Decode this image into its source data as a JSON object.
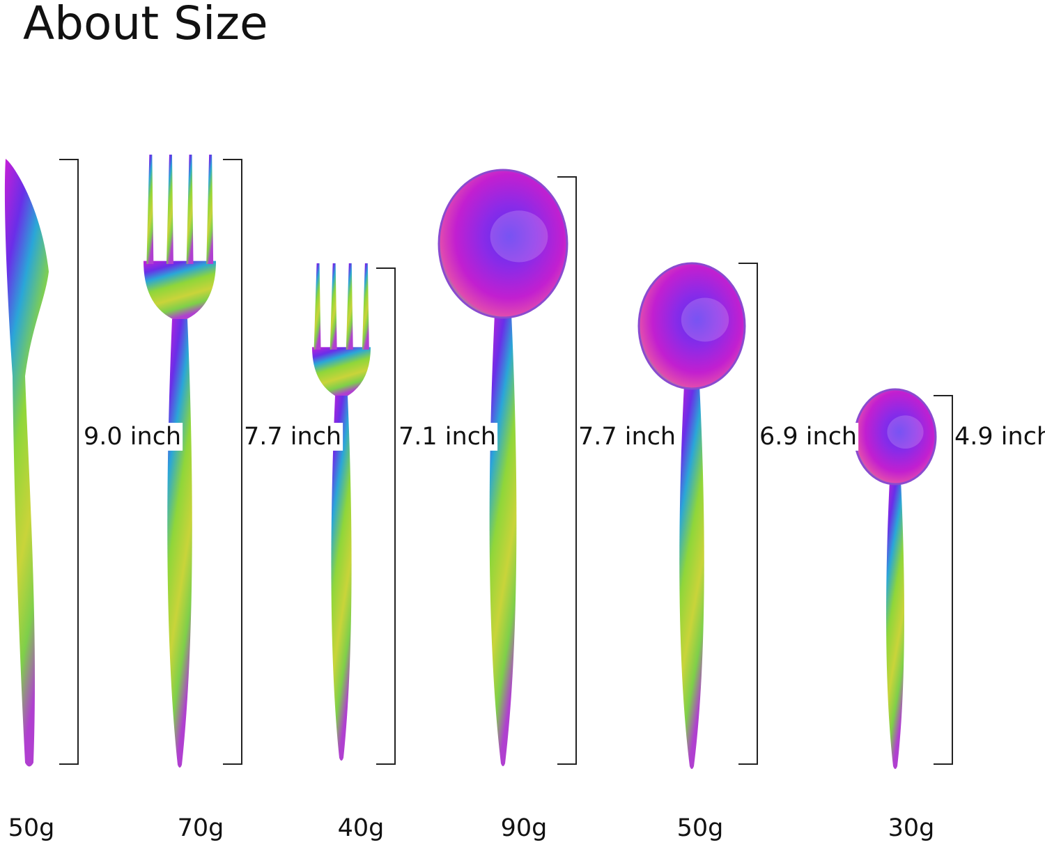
{
  "header": {
    "title": "About Size"
  },
  "items": [
    {
      "length": "9.0 inch",
      "weight": "50g"
    },
    {
      "length": "7.7 inch",
      "weight": "70g"
    },
    {
      "length": "7.1 inch",
      "weight": "40g"
    },
    {
      "length": "7.7 inch",
      "weight": "90g"
    },
    {
      "length": "6.9 inch",
      "weight": "50g"
    },
    {
      "length": "4.9 inch",
      "weight": "30g"
    }
  ]
}
